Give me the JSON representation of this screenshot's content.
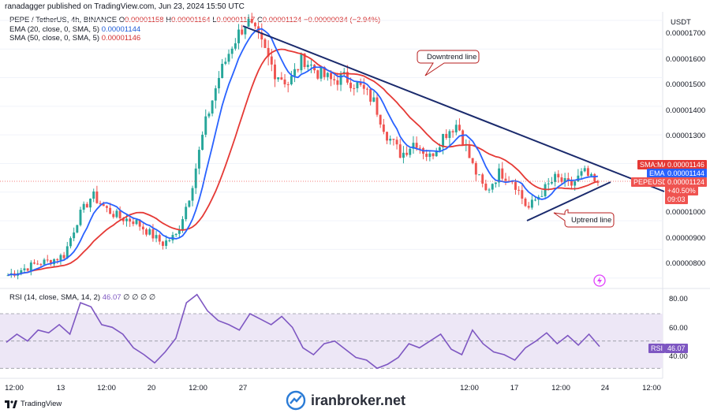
{
  "header": {
    "publisher_line": "ranadagger published on TradingView.com, Jun 23, 2024 15:50 UTC"
  },
  "legend": {
    "symbol": "PEPE / TetherUS, 4h, BINANCE",
    "ohlc_label_o": "O",
    "ohlc_o": "0.00001158",
    "ohlc_label_h": "H",
    "ohlc_h": "0.00001164",
    "ohlc_label_l": "L",
    "ohlc_l": "0.00001117",
    "ohlc_label_c": "C",
    "ohlc_c": "0.00001124",
    "change": "−0.00000034 (−2.94%)",
    "ema_label": "EMA (20, close, 0, SMA, 5)",
    "ema_value": "0.00001144",
    "sma_label": "SMA (50, close, 0, SMA, 5)",
    "sma_value": "0.00001146"
  },
  "rsi_legend": {
    "label": "RSI (14, close, SMA, 14, 2)",
    "value": "46.07",
    "extras": "∅ ∅ ∅ ∅"
  },
  "price_axis": {
    "currency": "USDT",
    "ticks": [
      "0.00001700",
      "0.00001600",
      "0.00001500",
      "0.00001400",
      "0.00001300",
      "0.00001000",
      "0.00000900",
      "0.00000800"
    ]
  },
  "rsi_axis": {
    "ticks": [
      "80.00",
      "60.00",
      "40.00"
    ]
  },
  "tags": {
    "sma_label": "SMA:MA",
    "sma_value": "0.00001146",
    "ema_label": "EMA",
    "ema_value": "0.00001144",
    "pair_label": "PEPEUSDT",
    "pair_value": "0.00001124",
    "pair_change": "+40.50%",
    "countdown": "09:03",
    "rsi_label": "RSI",
    "rsi_value": "46.07"
  },
  "time_axis": {
    "labels": [
      "12:00",
      "13",
      "12:00",
      "20",
      "12:00",
      "27",
      "12:00",
      "17",
      "12:00",
      "24",
      "12:00"
    ]
  },
  "annotations": {
    "downtrend": "Downtrend line",
    "uptrend": "Uptrend line"
  },
  "footer": {
    "brand": "TradingView",
    "watermark": "iranbroker.net"
  },
  "colors": {
    "up": "#26a69a",
    "down": "#ef5350",
    "ema": "#2962ff",
    "sma": "#e53935",
    "trendline": "#1a2a6c",
    "rsi": "#7e57c2",
    "rsi_band": "#ede7f6"
  },
  "chart_data": [
    {
      "type": "candlestick",
      "title": "PEPE / TetherUS, 4h, BINANCE",
      "ylim": [
        7.8e-06,
        1.73e-05
      ],
      "x_labels": [
        "12:00",
        "13",
        "12:00",
        "20",
        "12:00",
        "27",
        "12:00",
        "17",
        "12:00",
        "24",
        "12:00"
      ],
      "close_path": [
        8.1e-06,
        8.3e-06,
        8.5e-06,
        8.6e-06,
        8.8e-06,
        1.01e-05,
        1.09e-05,
        1.04e-05,
        1.01e-05,
        1e-05,
        9.6e-06,
        9.2e-06,
        9.5e-06,
        1.1e-05,
        1.33e-05,
        1.5e-05,
        1.62e-05,
        1.7e-05,
        1.62e-05,
        1.52e-05,
        1.48e-05,
        1.57e-05,
        1.52e-05,
        1.49e-05,
        1.5e-05,
        1.47e-05,
        1.42e-05,
        1.3e-05,
        1.23e-05,
        1.28e-05,
        1.22e-05,
        1.3e-05,
        1.34e-05,
        1.2e-05,
        1.1e-05,
        1.17e-05,
        1.14e-05,
        1.04e-05,
        1.1e-05,
        1.15e-05,
        1.12e-05,
        1.17e-05,
        1.12e-05
      ],
      "series": [
        {
          "name": "EMA (20, close, 0, SMA, 5)",
          "last": 1.144e-05
        },
        {
          "name": "SMA (50, close, 0, SMA, 5)",
          "last": 1.146e-05
        }
      ],
      "annotations": [
        "Downtrend line",
        "Uptrend line"
      ]
    },
    {
      "type": "line",
      "title": "RSI (14, close, SMA, 14, 2)",
      "ylim": [
        25,
        85
      ],
      "bands": [
        30,
        70
      ],
      "ticks": [
        80,
        60,
        40
      ],
      "values": [
        49,
        55,
        50,
        58,
        56,
        62,
        55,
        78,
        75,
        62,
        60,
        55,
        45,
        40,
        34,
        42,
        52,
        78,
        84,
        72,
        65,
        62,
        58,
        70,
        66,
        62,
        68,
        60,
        45,
        40,
        48,
        50,
        44,
        38,
        36,
        30,
        33,
        38,
        48,
        45,
        50,
        55,
        44,
        40,
        58,
        48,
        42,
        40,
        36,
        45,
        50,
        56,
        48,
        54,
        47,
        55,
        46
      ],
      "last": 46.07
    }
  ]
}
